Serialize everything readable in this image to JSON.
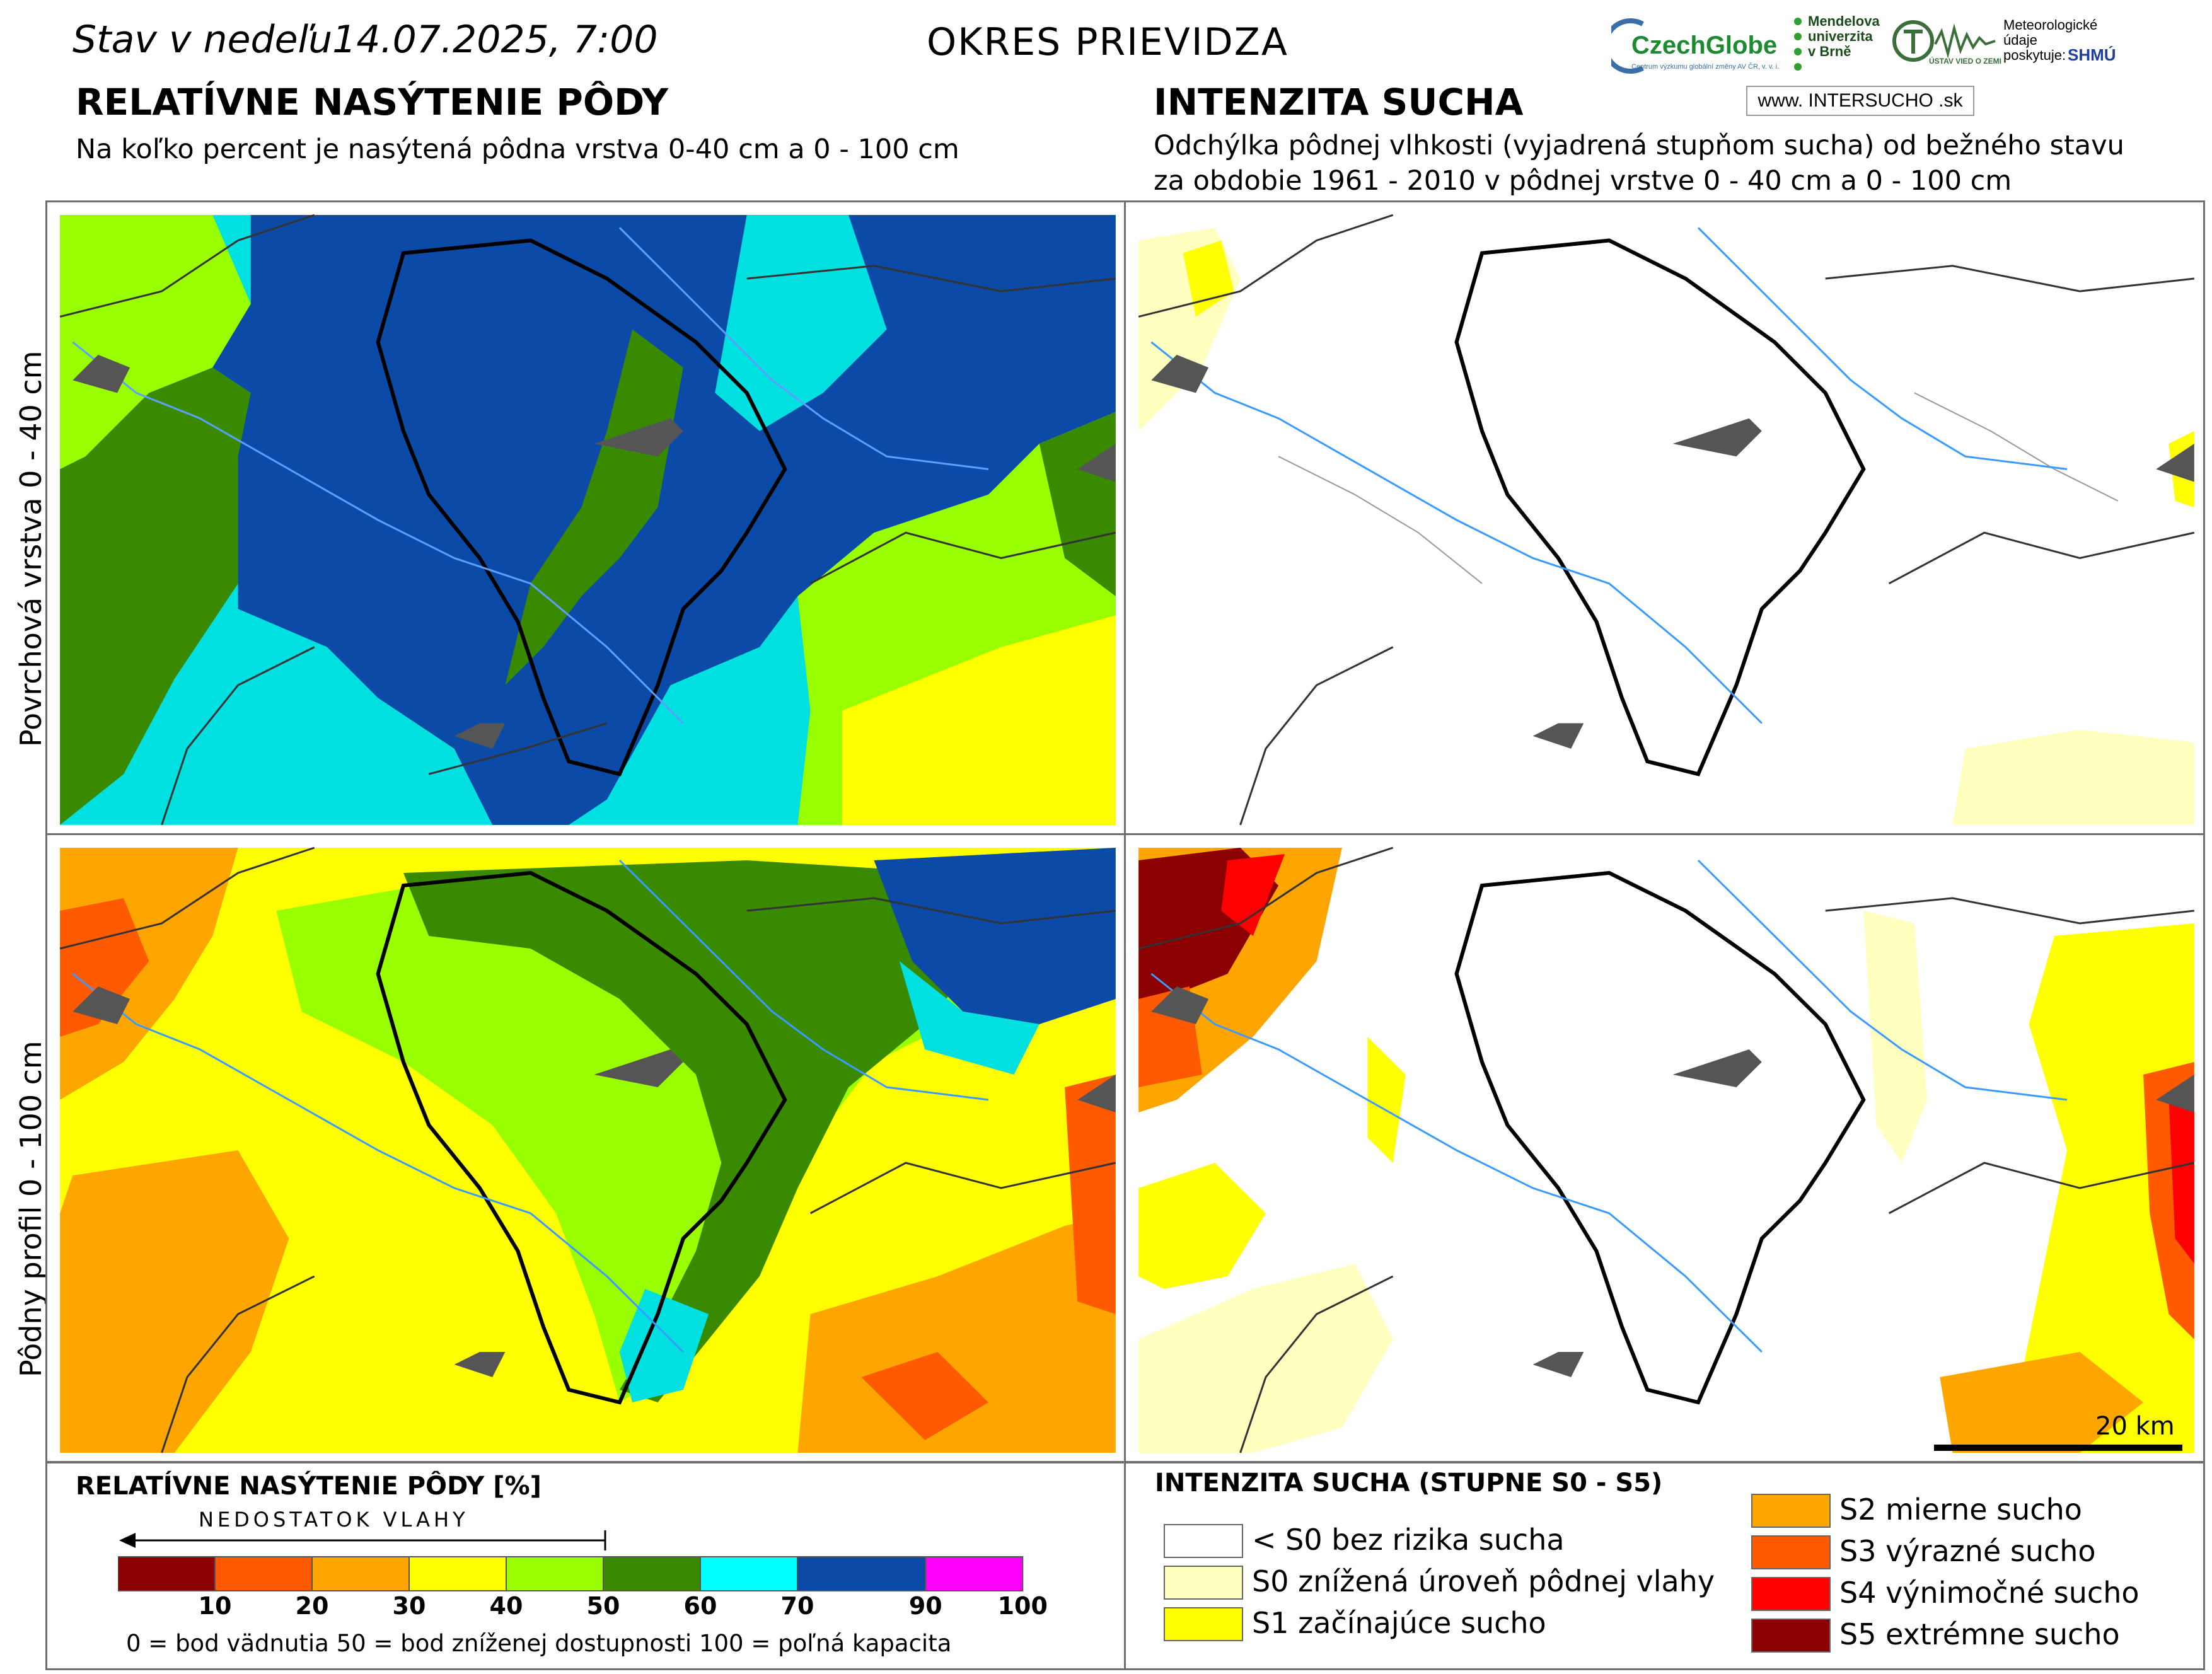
{
  "header": {
    "date": "Stav v nedeľu14.07.2025, 7:00",
    "district": "OKRES PRIEVIDZA"
  },
  "left_title": "RELATÍVNE NASÝTENIE PÔDY",
  "left_subtitle": "Na koľko percent je nasýtená pôdna vrstva 0-40 cm a 0 - 100 cm",
  "right_title": "INTENZITA SUCHA",
  "right_subtitle_1": "Odchýlka pôdnej vlhkosti (vyjadrená stupňom sucha) od bežného stavu",
  "right_subtitle_2": "za obdobie 1961 - 2010 v pôdnej vrstve 0 - 40 cm a 0 - 100 cm",
  "row_labels": {
    "top": "Povrchová vrstva 0 - 40 cm",
    "bottom": "Pôdny profil 0 - 100 cm"
  },
  "logos": {
    "czechglobe": "CzechGlobe",
    "czechglobe_sub": "Centrum výzkumu globální změny AV ČR, v. v. i.",
    "mendel": "Mendelova\nuniverzita\nv Brně",
    "ustav": "ÚSTAV VIED O ZEMI",
    "meteo": "Meteorologické\núdaje\nposkytuje:",
    "shmu": "SHMÚ",
    "web": "www. INTERSUCHO .sk"
  },
  "scale": {
    "label": "20 km"
  },
  "legend_saturation": {
    "title": "RELATÍVNE NASÝTENIE PÔDY [%]",
    "arrow_label": "NEDOSTATOK VLAHY",
    "classes": [
      {
        "from": 0,
        "to": 10,
        "color": "#8b0000"
      },
      {
        "from": 10,
        "to": 20,
        "color": "#ff5a00"
      },
      {
        "from": 20,
        "to": 30,
        "color": "#ffa500"
      },
      {
        "from": 30,
        "to": 40,
        "color": "#ffff00"
      },
      {
        "from": 40,
        "to": 50,
        "color": "#99ff00"
      },
      {
        "from": 50,
        "to": 60,
        "color": "#3a8a00"
      },
      {
        "from": 60,
        "to": 70,
        "color": "#00ffff"
      },
      {
        "from": 70,
        "to": 90,
        "color": "#0b4aa6"
      },
      {
        "from": 90,
        "to": 100,
        "color": "#ff00ff"
      }
    ],
    "ticks": [
      "10",
      "20",
      "30",
      "40",
      "50",
      "60",
      "70",
      "90",
      "100"
    ],
    "note": "0 = bod vädnutia  50 = bod zníženej dostupnosti  100 = poľná kapacita"
  },
  "legend_drought": {
    "title": "INTENZITA SUCHA (STUPNE S0 - S5)",
    "items": [
      {
        "label": "< S0 bez rizika sucha",
        "color": "#ffffff"
      },
      {
        "label": "S0 znížená úroveň pôdnej vlahy",
        "color": "#ffffc0"
      },
      {
        "label": "S1 začínajúce sucho",
        "color": "#ffff00"
      },
      {
        "label": "S2 mierne sucho",
        "color": "#ffa500"
      },
      {
        "label": "S3 výrazné sucho",
        "color": "#ff5a00"
      },
      {
        "label": "S4 výnimočné sucho",
        "color": "#ff0000"
      },
      {
        "label": "S5 extrémne sucho",
        "color": "#8b0000"
      }
    ]
  }
}
